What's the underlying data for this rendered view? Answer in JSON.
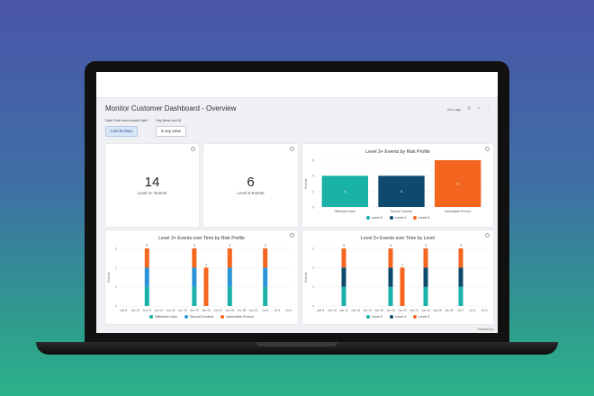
{
  "dashboard": {
    "title": "Monitor Customer Dashboard - Overview",
    "updated": "21m ago",
    "powered_by": "Powered by L"
  },
  "filters": [
    {
      "label": "Date-Time event issued Date *",
      "value": "Last 30 Days"
    },
    {
      "label": "Org Name and ID",
      "value": "is any value"
    }
  ],
  "kpis": [
    {
      "value": "14",
      "label": "Level 3+ Events"
    },
    {
      "value": "6",
      "label": "Level 5 Events"
    }
  ],
  "colors": {
    "teal": "#1ab2a8",
    "navy": "#0e4a6e",
    "orange": "#f4651f",
    "blue": "#2b93d8"
  },
  "chart_data": [
    {
      "type": "bar",
      "title": "Level 3+ Events by Risk Profile",
      "ylabel": "Events",
      "categories": [
        "Offensive User",
        "Sexual Content",
        "Vulnerable Person"
      ],
      "values": [
        4,
        4,
        6
      ],
      "ylim": [
        0,
        6
      ],
      "yticks": [
        "0",
        "2",
        "4",
        "6"
      ],
      "data_labels": [
        "4",
        "4",
        "6"
      ],
      "legend": [
        "Level 3",
        "Level 4",
        "Level 5"
      ]
    },
    {
      "type": "bar",
      "title": "Level 3+ Events over Time by Risk Profile",
      "ylabel": "Events",
      "x_ticks": [
        "Jun 8",
        "Jun 10",
        "Jun 12",
        "Jun 14",
        "Jun 16",
        "Jun 18",
        "Jun 20",
        "Jun 22",
        "Jun 24",
        "Jun 26",
        "Jun 28",
        "Jun 30",
        "Jul 2",
        "Jul 4",
        "Jul 6"
      ],
      "stacks": [
        {
          "x": "Jun 12",
          "total": "3",
          "segments": [
            {
              "series": "Offensive User",
              "value": 1
            },
            {
              "series": "Sexual Content",
              "value": 1
            },
            {
              "series": "Vulnerable Person",
              "value": 1
            }
          ]
        },
        {
          "x": "Jun 20",
          "total": "3",
          "segments": [
            {
              "series": "Offensive User",
              "value": 1
            },
            {
              "series": "Sexual Content",
              "value": 1
            },
            {
              "series": "Vulnerable Person",
              "value": 1
            }
          ]
        },
        {
          "x": "Jun 22",
          "total": "2",
          "segments": [
            {
              "series": "Vulnerable Person",
              "value": 2
            }
          ]
        },
        {
          "x": "Jun 26",
          "total": "3",
          "segments": [
            {
              "series": "Offensive User",
              "value": 1
            },
            {
              "series": "Sexual Content",
              "value": 1
            },
            {
              "series": "Vulnerable Person",
              "value": 1
            }
          ]
        },
        {
          "x": "Jul 2",
          "total": "3",
          "segments": [
            {
              "series": "Offensive User",
              "value": 1
            },
            {
              "series": "Sexual Content",
              "value": 1
            },
            {
              "series": "Vulnerable Person",
              "value": 1
            }
          ]
        }
      ],
      "ylim": [
        0,
        3
      ],
      "yticks": [
        "0",
        "1",
        "2",
        "3"
      ],
      "legend": [
        "Offensive User",
        "Sexual Content",
        "Vulnerable Person"
      ]
    },
    {
      "type": "bar",
      "title": "Level 3+ Events over Time by Level",
      "ylabel": "Events",
      "x_ticks": [
        "Jun 8",
        "Jun 10",
        "Jun 12",
        "Jun 14",
        "Jun 16",
        "Jun 18",
        "Jun 20",
        "Jun 22",
        "Jun 24",
        "Jun 26",
        "Jun 28",
        "Jun 30",
        "Jul 2",
        "Jul 4",
        "Jul 6"
      ],
      "stacks": [
        {
          "x": "Jun 12",
          "total": "3",
          "segments": [
            {
              "series": "Level 3",
              "value": 1
            },
            {
              "series": "Level 4",
              "value": 1
            },
            {
              "series": "Level 5",
              "value": 1
            }
          ]
        },
        {
          "x": "Jun 20",
          "total": "3",
          "segments": [
            {
              "series": "Level 3",
              "value": 1
            },
            {
              "series": "Level 4",
              "value": 1
            },
            {
              "series": "Level 5",
              "value": 1
            }
          ]
        },
        {
          "x": "Jun 22",
          "total": "2",
          "segments": [
            {
              "series": "Level 5",
              "value": 2
            }
          ]
        },
        {
          "x": "Jun 26",
          "total": "3",
          "segments": [
            {
              "series": "Level 3",
              "value": 1
            },
            {
              "series": "Level 4",
              "value": 1
            },
            {
              "series": "Level 5",
              "value": 1
            }
          ]
        },
        {
          "x": "Jul 2",
          "total": "3",
          "segments": [
            {
              "series": "Level 3",
              "value": 1
            },
            {
              "series": "Level 4",
              "value": 1
            },
            {
              "series": "Level 5",
              "value": 1
            }
          ]
        }
      ],
      "ylim": [
        0,
        3
      ],
      "yticks": [
        "0",
        "1",
        "2",
        "3"
      ],
      "legend": [
        "Level 3",
        "Level 4",
        "Level 5"
      ]
    }
  ]
}
